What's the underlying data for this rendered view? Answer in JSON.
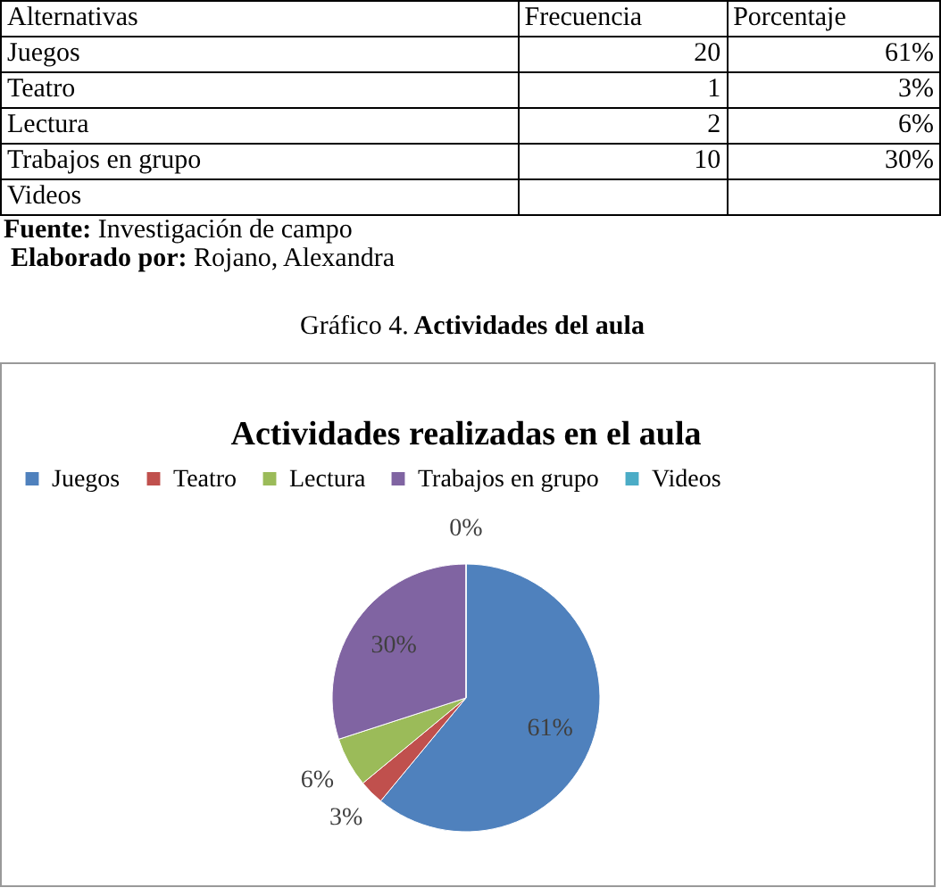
{
  "chart_data": [
    {
      "type": "other",
      "annotations": [
        "Alternativas",
        "Frecuencia",
        "Porcentaje",
        "Juegos",
        "20",
        "61%",
        "Teatro",
        "1",
        "3%",
        "Lectura",
        "2",
        "6%",
        "Trabajos en grupo",
        "10",
        "30%",
        "Videos",
        null,
        null
      ]
    },
    {
      "type": "pie",
      "title": "Actividades realizadas en el aula",
      "annotations": [
        "Fuente: Investigación de campo",
        "Elaborado por: Rojano, Alexandra",
        "Gráfico 4. Actividades del aula"
      ],
      "categories": [
        "Juegos",
        "Teatro",
        "Lectura",
        "Trabajos en grupo",
        "Videos"
      ],
      "values": [
        61,
        3,
        6,
        30,
        0
      ],
      "value_labels": [
        "61%",
        "3%",
        "6%",
        "30%",
        "0%"
      ],
      "colors": [
        "#4f81bd",
        "#c0504d",
        "#9bbb59",
        "#8064a2",
        "#4bacc6"
      ],
      "legend": "top"
    }
  ]
}
